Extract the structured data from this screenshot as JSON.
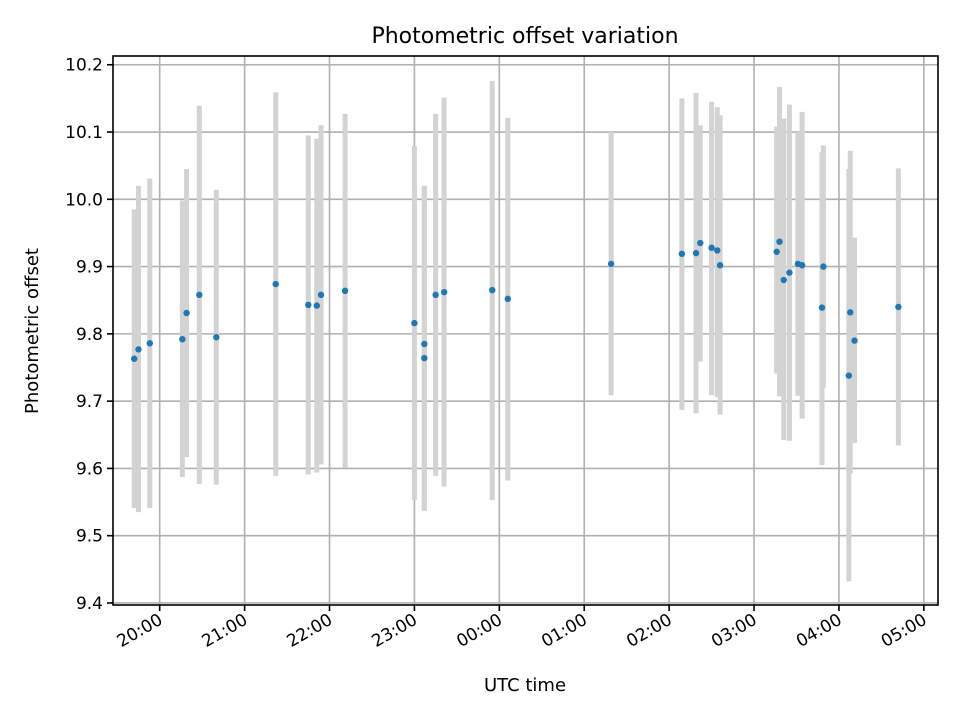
{
  "chart_data": {
    "type": "scatter",
    "title": "Photometric offset variation",
    "xlabel": "UTC time",
    "ylabel": "Photometric offset",
    "x_unit": "UTC time (HH:MM, times after midnight belong to the following day)",
    "xlim": [
      "19:27",
      "05:10"
    ],
    "ylim": [
      9.397,
      10.213
    ],
    "x_ticks": [
      "20:00",
      "21:00",
      "22:00",
      "23:00",
      "00:00",
      "01:00",
      "02:00",
      "03:00",
      "04:00",
      "05:00"
    ],
    "y_ticks": [
      "9.4",
      "9.5",
      "9.6",
      "9.7",
      "9.8",
      "9.9",
      "10.0",
      "10.1",
      "10.2"
    ],
    "grid": true,
    "colors": {
      "points": "#1f77b4",
      "error_bars": "#d3d3d3",
      "grid": "#b0b0b0"
    },
    "points": [
      {
        "t": "19:42",
        "y": 9.763,
        "lo": 9.541,
        "hi": 9.985
      },
      {
        "t": "19:45",
        "y": 9.777,
        "lo": 9.535,
        "hi": 10.02
      },
      {
        "t": "19:53",
        "y": 9.786,
        "lo": 9.541,
        "hi": 10.031
      },
      {
        "t": "20:16",
        "y": 9.792,
        "lo": 9.587,
        "hi": 9.998
      },
      {
        "t": "20:19",
        "y": 9.831,
        "lo": 9.617,
        "hi": 10.045
      },
      {
        "t": "20:28",
        "y": 9.858,
        "lo": 9.577,
        "hi": 10.139
      },
      {
        "t": "20:40",
        "y": 9.795,
        "lo": 9.576,
        "hi": 10.014
      },
      {
        "t": "21:22",
        "y": 9.874,
        "lo": 9.589,
        "hi": 10.159
      },
      {
        "t": "21:45",
        "y": 9.843,
        "lo": 9.591,
        "hi": 10.095
      },
      {
        "t": "21:51",
        "y": 9.842,
        "lo": 9.594,
        "hi": 10.09
      },
      {
        "t": "21:54",
        "y": 9.858,
        "lo": 9.606,
        "hi": 10.11
      },
      {
        "t": "22:11",
        "y": 9.864,
        "lo": 9.601,
        "hi": 10.127
      },
      {
        "t": "23:00",
        "y": 9.816,
        "lo": 9.553,
        "hi": 10.079
      },
      {
        "t": "23:07",
        "y": 9.785,
        "lo": 9.537,
        "hi": 10.02
      },
      {
        "t": "23:07",
        "y": 9.764,
        "lo": 9.537,
        "hi": 10.02
      },
      {
        "t": "23:15",
        "y": 9.858,
        "lo": 9.589,
        "hi": 10.127
      },
      {
        "t": "23:21",
        "y": 9.862,
        "lo": 9.573,
        "hi": 10.151
      },
      {
        "t": "23:55",
        "y": 9.865,
        "lo": 9.553,
        "hi": 10.176
      },
      {
        "t": "00:06",
        "y": 9.852,
        "lo": 9.582,
        "hi": 10.121
      },
      {
        "t": "01:19",
        "y": 9.904,
        "lo": 9.709,
        "hi": 10.1
      },
      {
        "t": "02:09",
        "y": 9.919,
        "lo": 9.687,
        "hi": 10.15
      },
      {
        "t": "02:19",
        "y": 9.92,
        "lo": 9.682,
        "hi": 10.158
      },
      {
        "t": "02:22",
        "y": 9.935,
        "lo": 9.759,
        "hi": 10.11
      },
      {
        "t": "02:30",
        "y": 9.928,
        "lo": 9.709,
        "hi": 10.145
      },
      {
        "t": "02:34",
        "y": 9.924,
        "lo": 9.706,
        "hi": 10.137
      },
      {
        "t": "02:36",
        "y": 9.902,
        "lo": 9.68,
        "hi": 10.125
      },
      {
        "t": "03:16",
        "y": 9.922,
        "lo": 9.741,
        "hi": 10.108
      },
      {
        "t": "03:18",
        "y": 9.937,
        "lo": 9.707,
        "hi": 10.167
      },
      {
        "t": "03:21",
        "y": 9.88,
        "lo": 9.642,
        "hi": 10.12
      },
      {
        "t": "03:25",
        "y": 9.891,
        "lo": 9.641,
        "hi": 10.141
      },
      {
        "t": "03:31",
        "y": 9.904,
        "lo": 9.708,
        "hi": 10.1
      },
      {
        "t": "03:34",
        "y": 9.902,
        "lo": 9.674,
        "hi": 10.13
      },
      {
        "t": "03:48",
        "y": 9.839,
        "lo": 9.605,
        "hi": 10.07
      },
      {
        "t": "03:49",
        "y": 9.9,
        "lo": 9.72,
        "hi": 10.08
      },
      {
        "t": "04:07",
        "y": 9.738,
        "lo": 9.432,
        "hi": 10.045
      },
      {
        "t": "04:08",
        "y": 9.832,
        "lo": 9.592,
        "hi": 10.072
      },
      {
        "t": "04:11",
        "y": 9.79,
        "lo": 9.638,
        "hi": 9.943
      },
      {
        "t": "04:42",
        "y": 9.84,
        "lo": 9.634,
        "hi": 10.046
      }
    ]
  }
}
